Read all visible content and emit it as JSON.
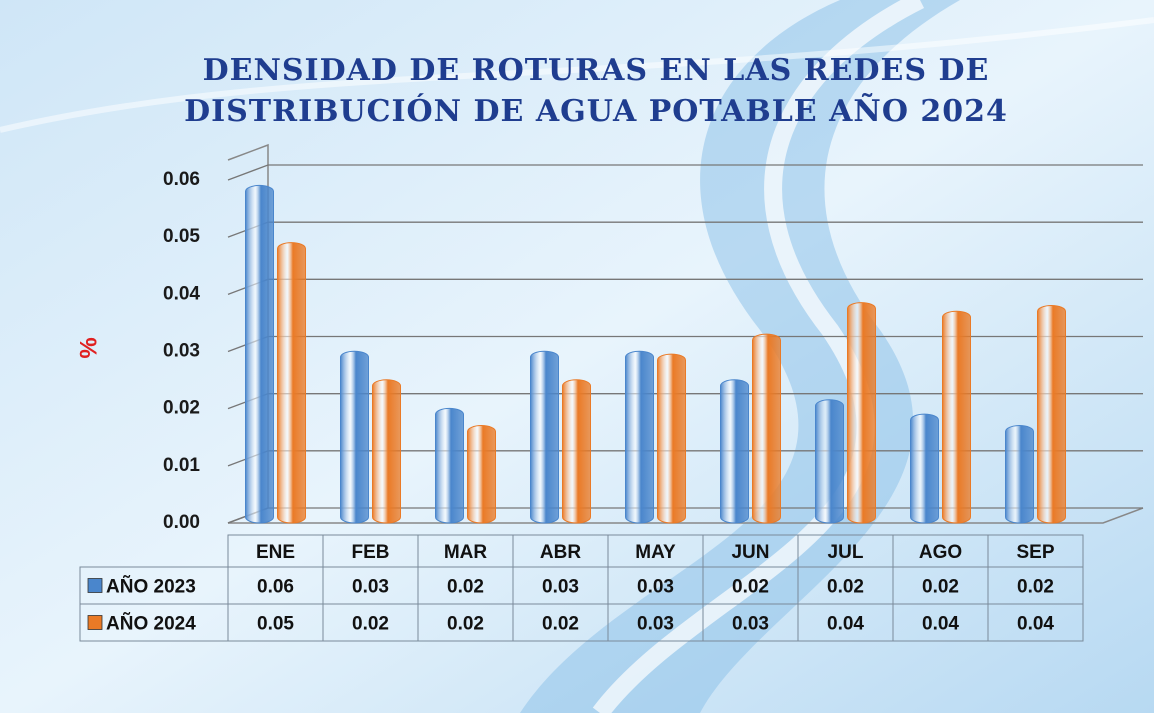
{
  "chart_data": {
    "type": "bar",
    "title": [
      "DENSIDAD DE ROTURAS EN LAS REDES DE",
      "DISTRIBUCIÓN DE AGUA POTABLE AÑO 2024"
    ],
    "y_label": "%",
    "categories": [
      "ENE",
      "FEB",
      "MAR",
      "ABR",
      "MAY",
      "JUN",
      "JUL",
      "AGO",
      "SEP"
    ],
    "series": [
      {
        "name": "AÑO 2023",
        "color": "#4a86cc",
        "values": [
          0.058,
          0.029,
          0.019,
          0.029,
          0.029,
          0.024,
          0.0205,
          0.018,
          0.016
        ],
        "value_labels": [
          "0.06",
          "0.03",
          "0.02",
          "0.03",
          "0.03",
          "0.02",
          "0.02",
          "0.02",
          "0.02"
        ]
      },
      {
        "name": "AÑO 2024",
        "color": "#ea7a26",
        "values": [
          0.048,
          0.024,
          0.016,
          0.024,
          0.0285,
          0.032,
          0.0375,
          0.036,
          0.037
        ],
        "value_labels": [
          "0.05",
          "0.02",
          "0.02",
          "0.02",
          "0.03",
          "0.03",
          "0.04",
          "0.04",
          "0.04"
        ]
      }
    ],
    "ylim": [
      0,
      0.06
    ],
    "yticks": [
      {
        "value": 0,
        "label": "0.00"
      },
      0.01,
      0.02,
      0.03,
      0.04,
      0.05,
      0.06
    ],
    "grid": true
  }
}
